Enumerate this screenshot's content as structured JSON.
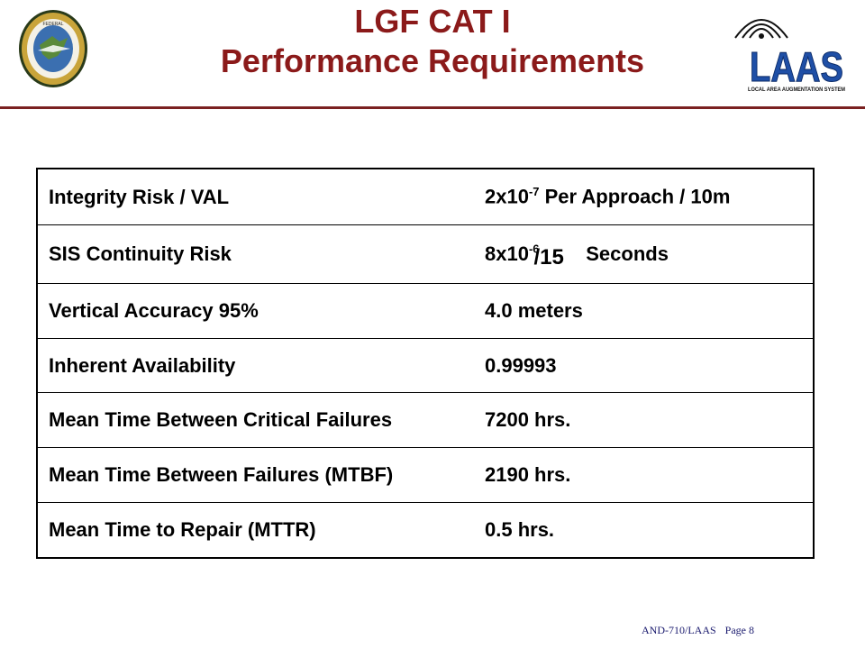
{
  "header": {
    "title_line1": "LGF CAT I",
    "title_line2": "Performance Requirements",
    "seal_text": "FEDERAL AVIATION ADMINISTRATION",
    "laas_logo_text": "LAAS",
    "laas_logo_subtext": "LOCAL AREA AUGMENTATION SYSTEM"
  },
  "requirements": [
    {
      "label": "Integrity Risk / VAL",
      "value_base": "2x10",
      "value_exp": "-7",
      "value_rest": " Per Approach / 10m"
    },
    {
      "label": "SIS Continuity Risk",
      "value_base": "8x10",
      "value_exp": "-6",
      "value_overlay": "/15",
      "value_rest": "Seconds"
    },
    {
      "label": "Vertical Accuracy  95%",
      "value": "4.0 meters"
    },
    {
      "label": "Inherent Availability",
      "value": "0.99993"
    },
    {
      "label": "Mean Time Between Critical Failures",
      "value": "7200 hrs."
    },
    {
      "label": "Mean Time Between Failures (MTBF)",
      "value": "2190 hrs."
    },
    {
      "label": "Mean Time to Repair (MTTR)",
      "value": "0.5 hrs."
    }
  ],
  "footer": {
    "doc_id": "AND-710/LAAS",
    "page": "Page 8"
  },
  "colors": {
    "title": "#8b1a1a",
    "rule": "#7a2020",
    "laas_blue": "#1f4fa6"
  }
}
